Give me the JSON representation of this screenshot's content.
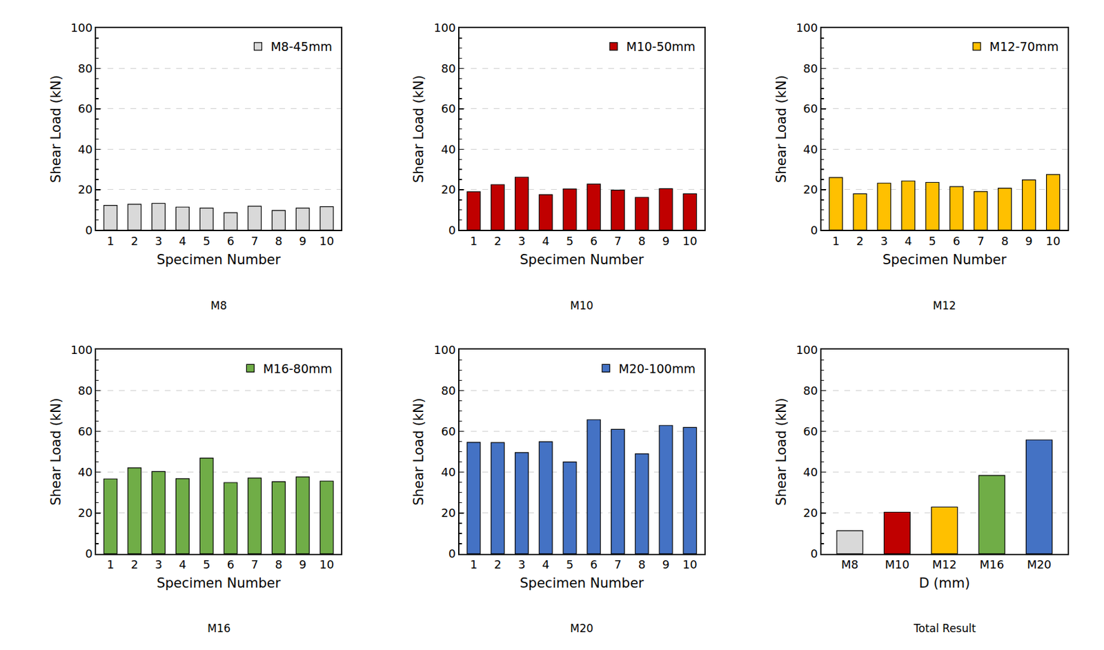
{
  "chart_data": [
    {
      "type": "bar",
      "title": "M8",
      "x_label": "Specimen Number",
      "y_label": "Shear Load (kN)",
      "categories": [
        1,
        2,
        3,
        4,
        5,
        6,
        7,
        8,
        9,
        10
      ],
      "series": [
        {
          "name": "M8-45mm",
          "color": "#d9d9d9",
          "values": [
            12.2,
            12.8,
            13.2,
            11.4,
            10.9,
            8.6,
            11.8,
            9.7,
            10.9,
            11.6
          ]
        }
      ],
      "ylim": [
        0,
        100
      ],
      "yticks": [
        0,
        20,
        40,
        60,
        80,
        100
      ],
      "grid": true,
      "legend": "upper right"
    },
    {
      "type": "bar",
      "title": "M10",
      "x_label": "Specimen Number",
      "y_label": "Shear Load (kN)",
      "categories": [
        1,
        2,
        3,
        4,
        5,
        6,
        7,
        8,
        9,
        10
      ],
      "series": [
        {
          "name": "M10-50mm",
          "color": "#c00000",
          "values": [
            19.0,
            22.5,
            26.2,
            17.5,
            20.3,
            22.8,
            19.8,
            16.2,
            20.5,
            18.0
          ]
        }
      ],
      "ylim": [
        0,
        100
      ],
      "yticks": [
        0,
        20,
        40,
        60,
        80,
        100
      ],
      "grid": true,
      "legend": "upper right"
    },
    {
      "type": "bar",
      "title": "M12",
      "x_label": "Specimen Number",
      "y_label": "Shear Load (kN)",
      "categories": [
        1,
        2,
        3,
        4,
        5,
        6,
        7,
        8,
        9,
        10
      ],
      "series": [
        {
          "name": "M12-70mm",
          "color": "#ffc000",
          "values": [
            26.0,
            18.0,
            23.2,
            24.3,
            23.6,
            21.5,
            19.1,
            20.7,
            24.8,
            27.5
          ]
        }
      ],
      "ylim": [
        0,
        100
      ],
      "yticks": [
        0,
        20,
        40,
        60,
        80,
        100
      ],
      "grid": true,
      "legend": "upper right"
    },
    {
      "type": "bar",
      "title": "M16",
      "x_label": "Specimen Number",
      "y_label": "Shear Load (kN)",
      "categories": [
        1,
        2,
        3,
        4,
        5,
        6,
        7,
        8,
        9,
        10
      ],
      "series": [
        {
          "name": "M16-80mm",
          "color": "#70ad47",
          "values": [
            36.7,
            42.1,
            40.3,
            36.8,
            46.9,
            34.9,
            37.1,
            35.3,
            37.7,
            35.6
          ]
        }
      ],
      "ylim": [
        0,
        100
      ],
      "yticks": [
        0,
        20,
        40,
        60,
        80,
        100
      ],
      "grid": true,
      "legend": "upper right"
    },
    {
      "type": "bar",
      "title": "M20",
      "x_label": "Specimen Number",
      "y_label": "Shear Load (kN)",
      "categories": [
        1,
        2,
        3,
        4,
        5,
        6,
        7,
        8,
        9,
        10
      ],
      "series": [
        {
          "name": "M20-100mm",
          "color": "#4472c4",
          "values": [
            54.6,
            54.5,
            49.6,
            54.9,
            45.0,
            65.7,
            61.0,
            49.0,
            62.9,
            61.9
          ]
        }
      ],
      "ylim": [
        0,
        100
      ],
      "yticks": [
        0,
        20,
        40,
        60,
        80,
        100
      ],
      "grid": true,
      "legend": "upper right"
    },
    {
      "type": "bar",
      "title": "Total Result",
      "x_label": "D (mm)",
      "y_label": "Shear Load (kN)",
      "categories": [
        "M8",
        "M10",
        "M12",
        "M16",
        "M20"
      ],
      "values": [
        11.3,
        20.4,
        22.9,
        38.4,
        55.8
      ],
      "colors": [
        "#d9d9d9",
        "#c00000",
        "#ffc000",
        "#70ad47",
        "#4472c4"
      ],
      "ylim": [
        0,
        100
      ],
      "yticks": [
        0,
        20,
        40,
        60,
        80,
        100
      ],
      "grid": true
    }
  ]
}
